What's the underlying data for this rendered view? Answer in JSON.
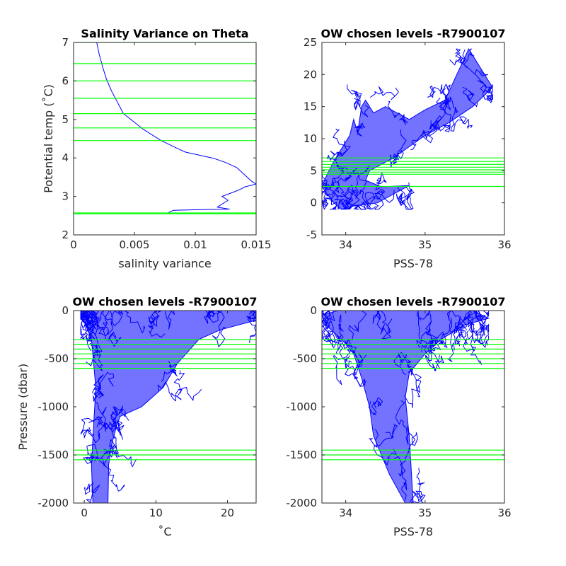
{
  "chart_data": [
    {
      "id": "p1",
      "type": "line",
      "title": "Salinity Variance on Theta",
      "xlabel": "salinity variance",
      "ylabel": "Potential temp (˚C)",
      "xlim": [
        0,
        0.015
      ],
      "ylim": [
        2,
        7
      ],
      "xticks": [
        0,
        0.005,
        0.01,
        0.015
      ],
      "xtick_labels": [
        "0",
        "0.005",
        "0.01",
        "0.015"
      ],
      "yticks": [
        2,
        3,
        4,
        5,
        6,
        7
      ],
      "ytick_labels": [
        "2",
        "3",
        "4",
        "5",
        "6",
        "7"
      ],
      "hlines": [
        2.55,
        2.57,
        4.45,
        4.78,
        5.15,
        5.55,
        6.0,
        6.45,
        7.0
      ],
      "series": [
        {
          "x": [
            0.0078,
            0.0082,
            0.011,
            0.0128,
            0.0118,
            0.0127,
            0.0122,
            0.0133,
            0.0138,
            0.0141,
            0.015,
            0.0146,
            0.0141,
            0.0134,
            0.0125,
            0.0115,
            0.0092,
            0.0085,
            0.0072,
            0.0057,
            0.0049,
            0.0041,
            0.0036,
            0.0031,
            0.0027,
            0.0024,
            0.0021,
            0.0019
          ],
          "y": [
            2.58,
            2.64,
            2.66,
            2.67,
            2.72,
            2.9,
            3.0,
            3.13,
            3.2,
            3.25,
            3.32,
            3.4,
            3.55,
            3.75,
            3.88,
            3.99,
            4.15,
            4.25,
            4.45,
            4.75,
            4.95,
            5.15,
            5.45,
            5.75,
            6.05,
            6.35,
            6.7,
            7.0
          ]
        }
      ]
    },
    {
      "id": "p2",
      "type": "line",
      "title": "OW chosen levels -R7900107",
      "xlabel": "PSS-78",
      "ylabel": "",
      "xlim": [
        33.7,
        36
      ],
      "ylim": [
        -5,
        25
      ],
      "xticks": [
        34,
        35,
        36
      ],
      "xtick_labels": [
        "34",
        "35",
        "36"
      ],
      "yticks": [
        -5,
        0,
        5,
        10,
        15,
        20,
        25
      ],
      "ytick_labels": [
        "-5",
        "0",
        "5",
        "10",
        "15",
        "20",
        "25"
      ],
      "hlines": [
        2.55,
        4.45,
        4.78,
        5.15,
        5.55,
        6.0,
        6.45,
        7.0
      ],
      "envelope": {
        "x": [
          33.7,
          33.75,
          33.85,
          34.05,
          34.1,
          34.15,
          34.2,
          34.25,
          34.35,
          34.5,
          34.8,
          35.0,
          35.25,
          35.55,
          35.85,
          35.6,
          35.3,
          35.0,
          34.6,
          34.3,
          34.25,
          34.45,
          34.8,
          34.4,
          34.1,
          33.95,
          33.85,
          33.7
        ],
        "y": [
          2.5,
          4.0,
          6.5,
          10.5,
          13.0,
          11.0,
          15.0,
          16.0,
          14.0,
          15.0,
          13.0,
          14.5,
          16.0,
          24.0,
          18.0,
          15.0,
          12.5,
          10.5,
          7.0,
          5.0,
          3.5,
          2.5,
          2.7,
          0.0,
          -0.5,
          -1.0,
          0.0,
          2.5
        ]
      }
    },
    {
      "id": "p3",
      "type": "line",
      "title": "OW chosen levels -R7900107",
      "xlabel": "˚C",
      "ylabel": "Pressure (dbar)",
      "xlim": [
        -1.5,
        24
      ],
      "ylim": [
        -2000,
        0
      ],
      "xticks": [
        0,
        10,
        20
      ],
      "xtick_labels": [
        "0",
        "10",
        "20"
      ],
      "yticks": [
        -2000,
        -1500,
        -1000,
        -500,
        0
      ],
      "ytick_labels": [
        "-2000",
        "-1500",
        "-1000",
        "-500",
        "0"
      ],
      "hlines": [
        -300,
        -350,
        -400,
        -450,
        -500,
        -550,
        -600,
        -1450,
        -1500,
        -1550
      ],
      "envelope": {
        "x": [
          -0.5,
          0.5,
          4.0,
          10.0,
          18.0,
          24.0,
          24.0,
          19.0,
          16.0,
          13.0,
          11.0,
          8.0,
          5.0,
          4.5,
          3.8,
          3.4,
          3.3,
          3.0,
          1.2,
          1.0,
          1.3,
          1.6,
          1.0,
          0.2,
          -0.5
        ],
        "y": [
          -50,
          0,
          0,
          0,
          0,
          0,
          -100,
          -200,
          -300,
          -550,
          -800,
          -1000,
          -1100,
          -1200,
          -1400,
          -1600,
          -2000,
          -2000,
          -2000,
          -1600,
          -1200,
          -800,
          -300,
          -150,
          -50
        ]
      }
    },
    {
      "id": "p4",
      "type": "line",
      "title": "OW chosen levels -R7900107",
      "xlabel": "PSS-78",
      "ylabel": "",
      "xlim": [
        33.7,
        36
      ],
      "ylim": [
        -2000,
        0
      ],
      "xticks": [
        34,
        35,
        36
      ],
      "xtick_labels": [
        "34",
        "35",
        "36"
      ],
      "yticks": [
        -2000,
        -1500,
        -1000,
        -500,
        0
      ],
      "ytick_labels": [
        "-2000",
        "-1500",
        "-1000",
        "-500",
        "0"
      ],
      "hlines": [
        -300,
        -350,
        -400,
        -450,
        -500,
        -550,
        -600,
        -1450,
        -1500,
        -1550
      ],
      "envelope": {
        "x": [
          33.7,
          33.9,
          34.4,
          35.0,
          35.6,
          35.8,
          35.5,
          35.2,
          35.0,
          34.8,
          34.75,
          34.8,
          34.85,
          34.75,
          34.55,
          34.35,
          34.3,
          34.2,
          34.1,
          33.95,
          33.75,
          33.7
        ],
        "y": [
          -50,
          0,
          0,
          0,
          0,
          -80,
          -150,
          -300,
          -450,
          -650,
          -900,
          -1300,
          -2000,
          -2000,
          -1700,
          -1300,
          -1000,
          -700,
          -450,
          -300,
          -150,
          -50
        ]
      }
    }
  ]
}
